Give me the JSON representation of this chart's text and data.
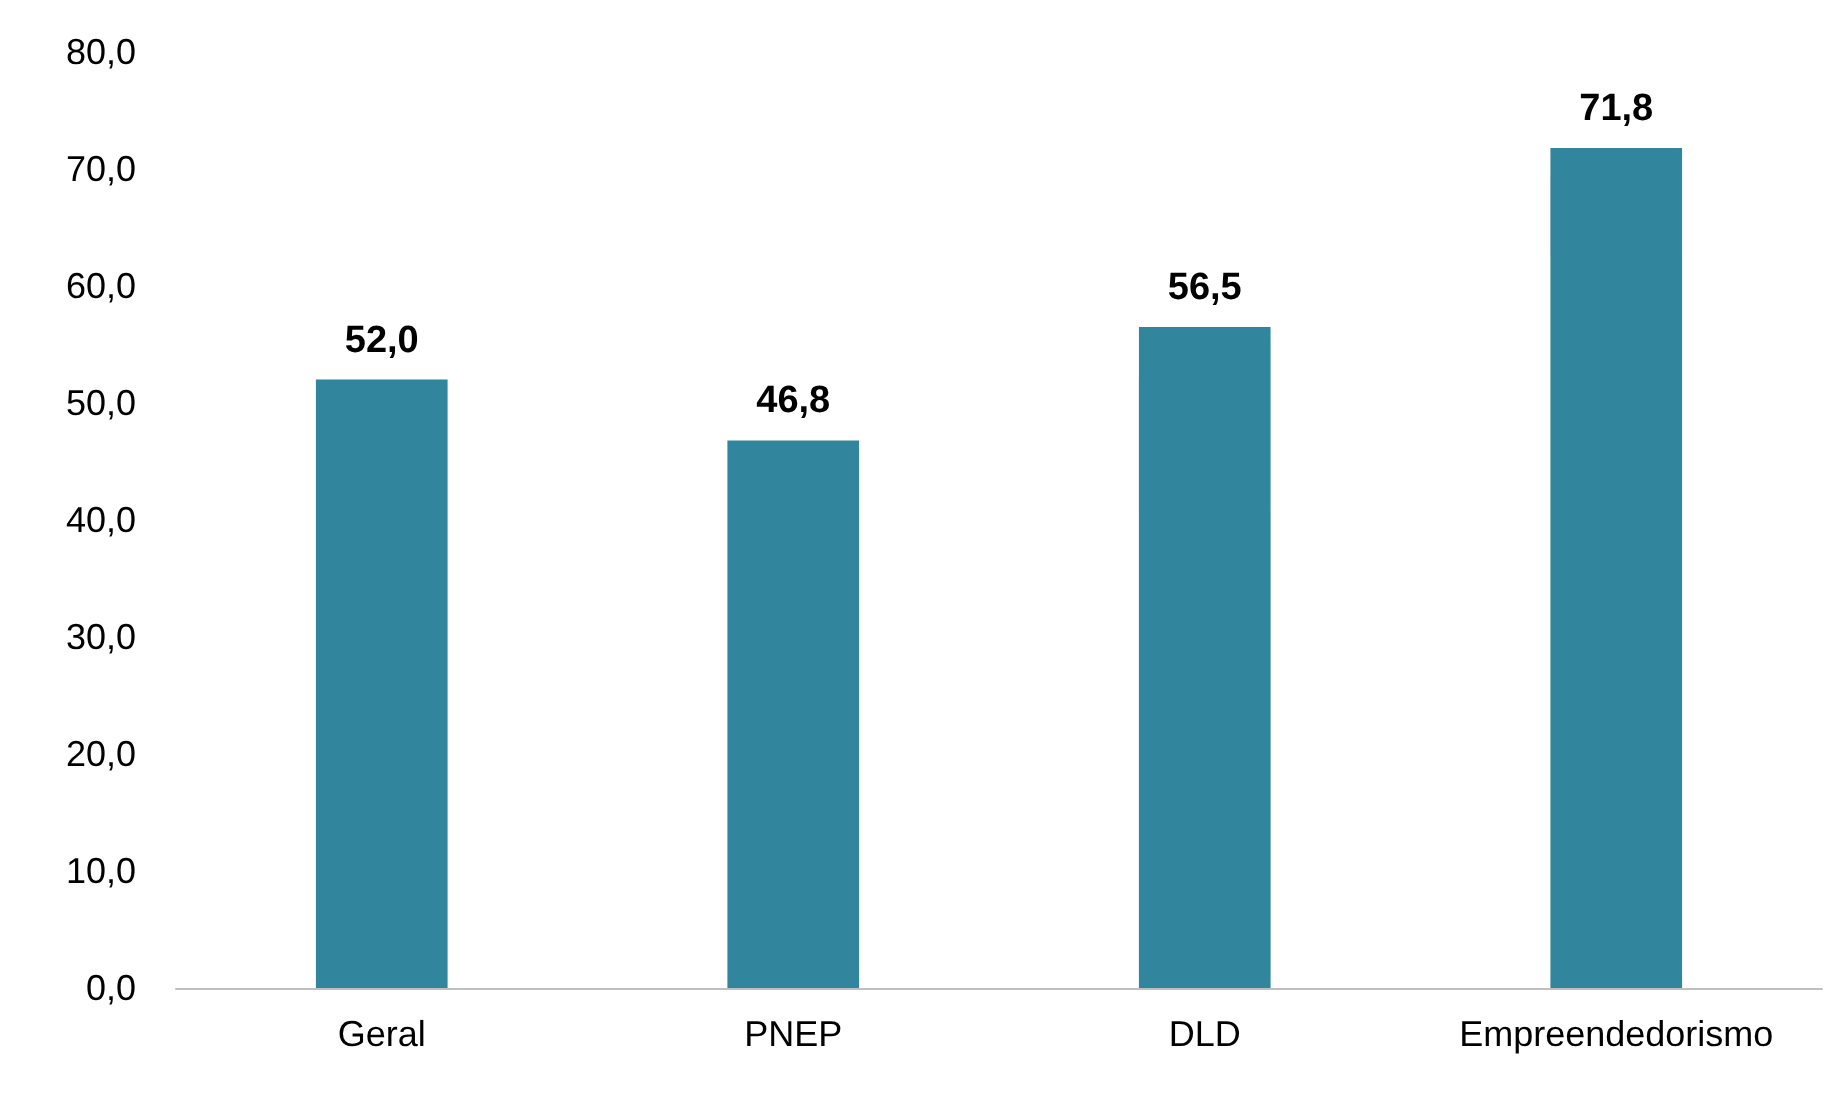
{
  "chart_data": {
    "type": "bar",
    "categories": [
      "Geral",
      "PNEP",
      "DLD",
      "Empreendedorismo"
    ],
    "values": [
      52.0,
      46.8,
      56.5,
      71.8
    ],
    "value_labels": [
      "52,0",
      "46,8",
      "56,5",
      "71,8"
    ],
    "color": "#31859c",
    "ylim": [
      0,
      80
    ],
    "yticks": [
      {
        "value": 0,
        "label": "0,0"
      },
      {
        "value": 10,
        "label": "10,0"
      },
      {
        "value": 20,
        "label": "20,0"
      },
      {
        "value": 30,
        "label": "30,0"
      },
      {
        "value": 40,
        "label": "40,0"
      },
      {
        "value": 50,
        "label": "50,0"
      },
      {
        "value": 60,
        "label": "60,0"
      },
      {
        "value": 70,
        "label": "70,0"
      },
      {
        "value": 80,
        "label": "80,0"
      }
    ],
    "grid": false
  }
}
